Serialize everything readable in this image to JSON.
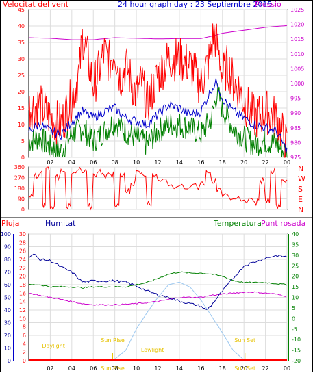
{
  "header": {
    "title": "24 hour graph day : 23 Septiembre 2015",
    "left_label": "Velocitat del vent",
    "right_label": "Pressió"
  },
  "colors": {
    "wind_speed": "#ff0000",
    "wind_avg": "#0000cc",
    "wind_gust": "#008000",
    "pressure": "#cc00cc",
    "direction": "#ff0000",
    "rain": "#ff0000",
    "humidity": "#000099",
    "temperature": "#008000",
    "dewpoint": "#cc00cc",
    "solar": "#9cc8f0",
    "event_text": "#e6c200",
    "grid": "#dddddd"
  },
  "chart_data": [
    {
      "type": "line",
      "name": "wind_pressure",
      "left_axis_ticks": [
        "0",
        "5",
        "10",
        "15",
        "20",
        "25",
        "30",
        "35",
        "40",
        "45"
      ],
      "right_axis_ticks": [
        "975",
        "980",
        "985",
        "990",
        "995",
        "1000",
        "1005",
        "1010",
        "1015",
        "1020",
        "1025"
      ],
      "x_ticks": [
        "02",
        "04",
        "06",
        "08",
        "10",
        "12",
        "14",
        "16",
        "18",
        "20",
        "22",
        "00"
      ],
      "ylim": [
        0,
        45
      ],
      "y2lim": [
        975,
        1025
      ],
      "xlim": [
        0,
        24
      ],
      "series": [
        {
          "key": "pressure",
          "x": [
            0,
            2,
            4,
            6,
            8,
            10,
            12,
            14,
            16,
            17,
            18,
            20,
            22,
            24
          ],
          "values": [
            1015.5,
            1015.3,
            1014.8,
            1014.8,
            1015.5,
            1015.3,
            1015.1,
            1015.2,
            1015.2,
            1016.0,
            1017.0,
            1018.0,
            1019.0,
            1019.6
          ]
        },
        {
          "key": "wind_speed",
          "x": [
            0,
            1,
            2,
            3,
            4,
            4.7,
            5,
            5.5,
            6,
            6.5,
            7,
            7.5,
            8,
            8.5,
            9,
            10,
            10.5,
            11,
            12,
            13,
            14,
            15,
            16,
            16.8,
            17.2,
            17.6,
            18,
            18.5,
            19,
            19.5,
            20,
            21,
            22,
            23,
            23.5,
            24
          ],
          "values": [
            15,
            16,
            12,
            10,
            18,
            26,
            37,
            30,
            22,
            26,
            32,
            29,
            33,
            24,
            28,
            19,
            23,
            16,
            25,
            30,
            30,
            28,
            22,
            30,
            38,
            33,
            25,
            28,
            23,
            21,
            17,
            12,
            14,
            12,
            8,
            3
          ]
        },
        {
          "key": "wind_avg",
          "x": [
            0,
            1,
            2,
            3,
            4,
            5,
            6,
            7,
            8,
            9,
            10,
            11,
            12,
            13,
            14,
            15,
            16,
            17,
            17.5,
            18,
            19,
            20,
            21,
            22,
            23,
            24
          ],
          "values": [
            8,
            10,
            8,
            7,
            11,
            14,
            12,
            14,
            15,
            12,
            11,
            10,
            13,
            16,
            15,
            13,
            14,
            21,
            23,
            18,
            14,
            12,
            10,
            9,
            8,
            2
          ]
        },
        {
          "key": "wind_gust",
          "x": [
            0,
            1,
            2,
            3,
            4,
            5,
            6,
            7,
            8,
            9,
            10,
            11,
            12,
            13,
            14,
            15,
            16,
            17,
            17.5,
            18,
            19,
            20,
            21,
            22,
            23,
            24
          ],
          "values": [
            5,
            6,
            3,
            2,
            7,
            9,
            5,
            8,
            11,
            8,
            6,
            4,
            8,
            10,
            10,
            9,
            7,
            12,
            20,
            15,
            9,
            6,
            4,
            5,
            4,
            1
          ]
        }
      ]
    },
    {
      "type": "line",
      "name": "wind_direction",
      "left_axis_ticks": [
        "0",
        "90",
        "180",
        "270",
        "360"
      ],
      "right_axis_letters": [
        "N",
        "W",
        "S",
        "E",
        "N"
      ],
      "ylim": [
        0,
        360
      ],
      "xlim": [
        0,
        24
      ],
      "series": [
        {
          "key": "direction",
          "x": [
            0,
            0.5,
            1,
            1.3,
            1.6,
            2,
            2.5,
            3,
            3.5,
            4,
            4.5,
            5,
            5.5,
            6,
            6.5,
            7,
            7.5,
            8,
            8.5,
            9,
            9.5,
            10,
            10.5,
            11,
            11.5,
            12,
            13,
            14,
            15,
            16,
            16.5,
            17,
            17.5,
            18,
            19,
            20,
            21,
            21.5,
            22,
            22.5,
            23,
            23.5,
            24
          ],
          "values": [
            110,
            280,
            300,
            40,
            350,
            10,
            280,
            340,
            20,
            300,
            330,
            310,
            20,
            300,
            320,
            290,
            300,
            30,
            300,
            150,
            220,
            330,
            310,
            40,
            300,
            250,
            200,
            200,
            190,
            230,
            330,
            240,
            150,
            110,
            90,
            80,
            60,
            250,
            80,
            330,
            40,
            250,
            250
          ]
        }
      ]
    },
    {
      "type": "line",
      "name": "rain_humidity_temperature",
      "left_title": "Pluja",
      "humidity_title": "Humitat",
      "temperature_title": "Temperatura",
      "dewpoint_title": "Punt rosada",
      "rain_ticks": [
        "0",
        "2",
        "4",
        "6",
        "8",
        "10",
        "12",
        "14",
        "16",
        "18",
        "20",
        "22",
        "24",
        "26",
        "28",
        "30"
      ],
      "humidity_ticks": [
        "0",
        "10",
        "20",
        "30",
        "40",
        "50",
        "60",
        "70",
        "80",
        "90",
        "100"
      ],
      "temp_ticks": [
        "-20",
        "-15",
        "-10",
        "-5",
        "0",
        "5",
        "10",
        "15",
        "20",
        "25",
        "30",
        "35",
        "40"
      ],
      "events": [
        {
          "label": "Daylight",
          "x": 2.3
        },
        {
          "label": "Sun Rise",
          "x": 7.8
        },
        {
          "label": "Lowlight",
          "x": 11.5
        },
        {
          "label": "Sun Set",
          "x": 20.1
        }
      ],
      "bottom_marks": [
        {
          "label": "Sun Rise",
          "x": 7.8
        },
        {
          "label": "Sun Set",
          "x": 20.1
        }
      ],
      "series": [
        {
          "key": "humidity",
          "x": [
            0,
            0.5,
            1,
            2,
            3,
            4,
            5,
            6,
            7,
            8,
            9,
            10,
            11,
            12,
            13,
            14,
            15,
            16,
            16.5,
            17,
            18,
            19,
            20,
            21,
            22,
            23,
            24
          ],
          "values": [
            82,
            84,
            80,
            79,
            74,
            70,
            62,
            63,
            63,
            63,
            62,
            59,
            55,
            52,
            50,
            47,
            45,
            43,
            40,
            44,
            55,
            65,
            75,
            78,
            81,
            83,
            82
          ]
        },
        {
          "key": "temperature",
          "x": [
            0,
            1,
            2,
            3,
            4,
            5,
            6,
            7,
            8,
            9,
            10,
            11,
            12,
            13,
            14,
            15,
            16,
            17,
            18,
            19,
            20,
            21,
            22,
            23,
            24
          ],
          "values": [
            16,
            16,
            15,
            15,
            15,
            14.5,
            15,
            15,
            15,
            15,
            16,
            17,
            19,
            21,
            22,
            21.5,
            21.5,
            21,
            20,
            18,
            17,
            17,
            17,
            16.5,
            16
          ]
        },
        {
          "key": "dewpoint",
          "x": [
            0,
            1,
            2,
            3,
            4,
            5,
            6,
            7,
            8,
            9,
            10,
            11,
            12,
            13,
            14,
            15,
            16,
            17,
            18,
            19,
            20,
            21,
            22,
            23,
            24
          ],
          "values": [
            12,
            11,
            10,
            9,
            8,
            7,
            6.5,
            6.5,
            6.5,
            6.7,
            7,
            7.5,
            8,
            9,
            10,
            10,
            10,
            11,
            11.5,
            12,
            12.5,
            12.5,
            12,
            11.5,
            10.5
          ]
        },
        {
          "key": "solar",
          "x": [
            7.8,
            9,
            10,
            11,
            12,
            13,
            14,
            15,
            16,
            17,
            18,
            19,
            20.1
          ],
          "values": [
            0,
            8,
            25,
            38,
            50,
            60,
            62,
            58,
            48,
            35,
            22,
            8,
            0
          ]
        }
      ]
    }
  ]
}
